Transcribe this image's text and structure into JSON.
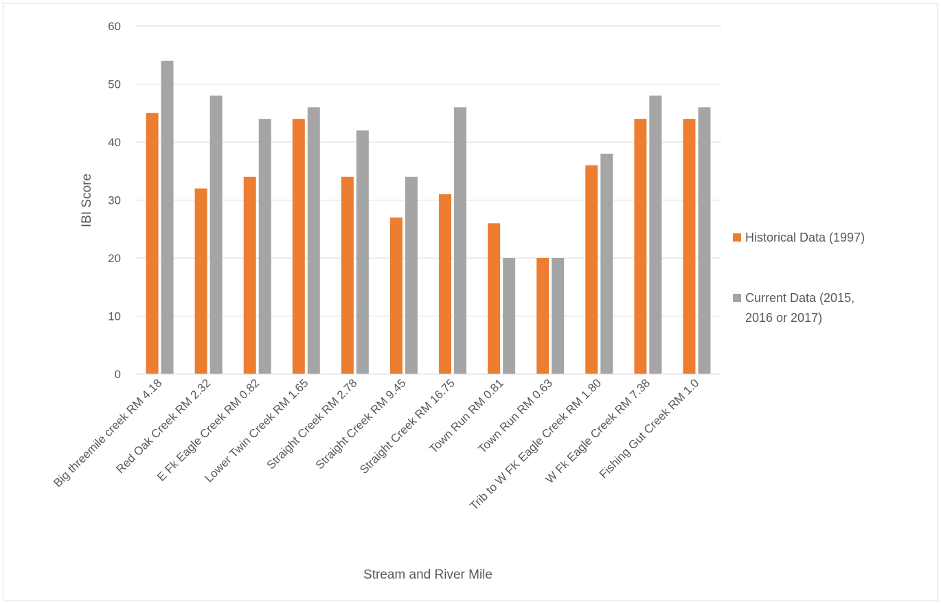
{
  "chart_data": {
    "type": "bar",
    "xlabel": "Stream and River Mile",
    "ylabel": "IBI Score",
    "ylim": [
      0,
      60
    ],
    "yticks": [
      0,
      10,
      20,
      30,
      40,
      50,
      60
    ],
    "grid": true,
    "legend_position": "right",
    "categories": [
      "Big threemile creek RM 4.18",
      "Red Oak Creek RM 2.32",
      "E Fk Eagle Creek RM 0.82",
      "Lower Twin Creek RM 1.65",
      "Straight Creek  RM 2.78",
      "Straight Creek RM 9.45",
      "Straight Creek RM 16.75",
      "Town Run RM 0.81",
      "Town Run RM 0.63",
      "Trib to W FK Eagle Creek RM 1.80",
      "W Fk Eagle Creek RM 7.38",
      "Fishing Gut Creek RM 1.0"
    ],
    "series": [
      {
        "name": "Historical Data (1997)",
        "legend_lines": [
          "Historical Data (1997)"
        ],
        "color": "#ED7D31",
        "values": [
          45,
          32,
          34,
          44,
          34,
          27,
          31,
          26,
          20,
          36,
          44,
          44
        ]
      },
      {
        "name": "Current Data (2015, 2016 or 2017)",
        "legend_lines": [
          "Current Data (2015,",
          "2016 or 2017)"
        ],
        "color": "#A5A5A5",
        "values": [
          54,
          48,
          44,
          46,
          42,
          34,
          46,
          20,
          20,
          38,
          48,
          46
        ]
      }
    ]
  }
}
